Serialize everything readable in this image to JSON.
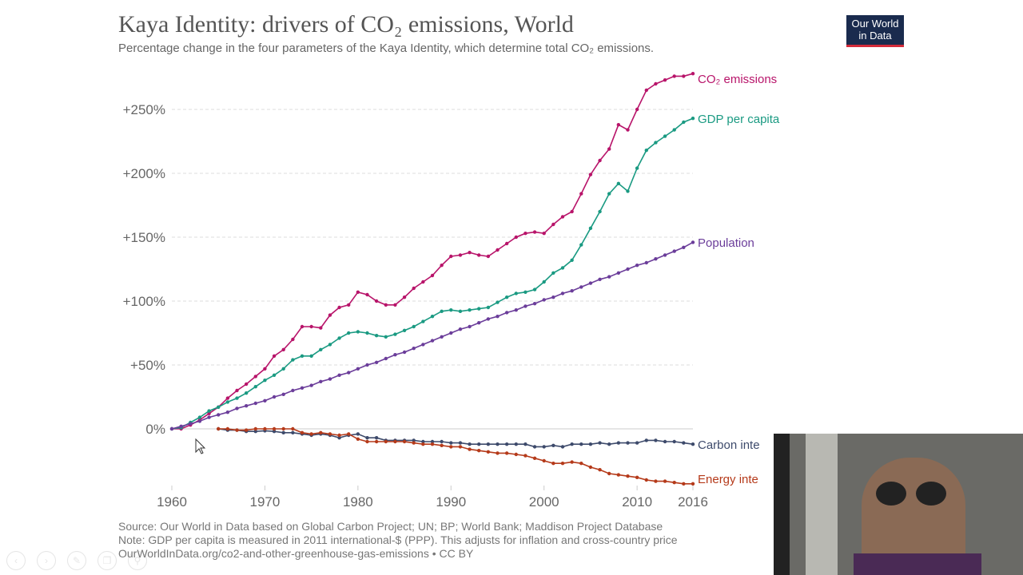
{
  "header": {
    "title": "Kaya Identity: drivers of CO₂ emissions, World",
    "subtitle": "Percentage change in the four parameters of the Kaya Identity, which determine total CO₂ emissions.",
    "logo": "Our World in Data"
  },
  "footer": {
    "source": "Source: Our World in Data based on Global Carbon Project; UN; BP; World Bank; Maddison Project Database",
    "note": "Note: GDP per capita is measured in 2011 international-$ (PPP). This adjusts for inflation and cross-country price",
    "url": "OurWorldInData.org/co2-and-other-greenhouse-gas-emissions • CC BY"
  },
  "chart_data": {
    "type": "line",
    "title": "Kaya Identity: drivers of CO₂ emissions, World",
    "xlim": [
      1960,
      2016
    ],
    "ylim": [
      -45,
      280
    ],
    "x_ticks": [
      "1960",
      "1970",
      "1980",
      "1990",
      "2000",
      "2010",
      "2016"
    ],
    "y_ticks": [
      "0%",
      "+50%",
      "+100%",
      "+150%",
      "+200%",
      "+250%"
    ],
    "grid": "horizontal dashed",
    "legend": "inline labels at line ends",
    "series": [
      {
        "name": "CO₂ emissions",
        "color": "#b8146a",
        "start": 1960,
        "values": [
          0,
          0,
          3,
          7,
          12,
          17,
          24,
          30,
          35,
          41,
          47,
          57,
          62,
          70,
          80,
          80,
          79,
          89,
          95,
          97,
          107,
          105,
          100,
          97,
          97,
          103,
          110,
          115,
          120,
          128,
          135,
          136,
          138,
          136,
          135,
          140,
          145,
          150,
          153,
          154,
          153,
          160,
          166,
          170,
          184,
          199,
          210,
          219,
          238,
          234,
          250,
          265,
          270,
          273,
          276,
          276,
          278
        ]
      },
      {
        "name": "GDP per capita",
        "color": "#1a9a82",
        "start": 1960,
        "values": [
          0,
          1,
          5,
          9,
          14,
          17,
          21,
          24,
          28,
          33,
          38,
          42,
          47,
          54,
          57,
          57,
          62,
          66,
          71,
          75,
          76,
          75,
          73,
          72,
          74,
          77,
          80,
          84,
          88,
          92,
          93,
          92,
          93,
          94,
          95,
          99,
          103,
          106,
          107,
          109,
          115,
          122,
          126,
          132,
          144,
          157,
          170,
          184,
          192,
          186,
          204,
          218,
          224,
          229,
          234,
          240,
          243
        ]
      },
      {
        "name": "Population",
        "color": "#6b3d9a",
        "start": 1960,
        "values": [
          0,
          2,
          4,
          6,
          9,
          11,
          13,
          16,
          18,
          20,
          22,
          25,
          27,
          30,
          32,
          34,
          37,
          39,
          42,
          44,
          47,
          50,
          52,
          55,
          58,
          60,
          63,
          66,
          69,
          72,
          75,
          78,
          80,
          83,
          86,
          88,
          91,
          93,
          96,
          98,
          101,
          103,
          106,
          108,
          111,
          114,
          117,
          119,
          122,
          125,
          128,
          130,
          133,
          136,
          139,
          142,
          146
        ]
      },
      {
        "name": "Carbon inte",
        "color": "#3d4a6b",
        "start": 1965,
        "values": [
          0,
          -1,
          -1,
          -2,
          -2,
          -1.5,
          -2,
          -3,
          -3,
          -4,
          -5,
          -4,
          -5,
          -7,
          -5,
          -4,
          -7,
          -7,
          -9,
          -9,
          -9,
          -9,
          -10,
          -10,
          -10,
          -11,
          -11,
          -12,
          -12,
          -12,
          -12,
          -12,
          -12,
          -12,
          -14,
          -14,
          -13,
          -14,
          -12,
          -12,
          -12,
          -11,
          -12,
          -11,
          -11,
          -11,
          -9,
          -9,
          -10,
          -10,
          -11,
          -12
        ]
      },
      {
        "name": "Energy inte",
        "color": "#b53a1a",
        "start": 1965,
        "values": [
          0,
          0,
          -1,
          -1,
          0,
          0,
          0,
          0,
          0,
          -3,
          -4,
          -3,
          -4,
          -5,
          -4,
          -8,
          -10,
          -10,
          -10,
          -10,
          -10,
          -11,
          -12,
          -12,
          -13,
          -14,
          -14,
          -16,
          -17,
          -18,
          -19,
          -19,
          -20,
          -21,
          -23,
          -25,
          -27,
          -27,
          -26,
          -27,
          -30,
          -32,
          -35,
          -36,
          -37,
          -38,
          -40,
          -41,
          -41,
          -42,
          -43,
          -43
        ]
      }
    ]
  }
}
